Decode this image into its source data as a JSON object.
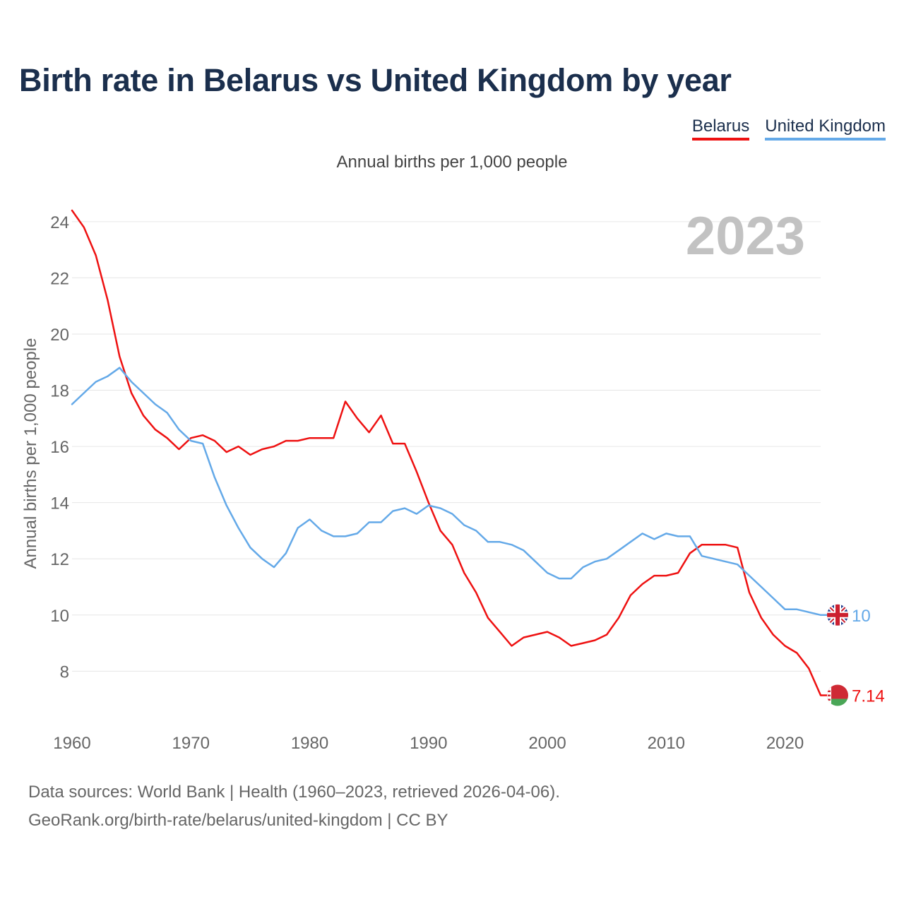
{
  "title": "Birth rate in Belarus vs United Kingdom by year",
  "subtitle": "Annual births per 1,000 people",
  "legend": [
    {
      "name": "Belarus",
      "color": "#ee1111"
    },
    {
      "name": "United Kingdom",
      "color": "#64a9e8"
    }
  ],
  "source": {
    "line1": "Data sources: World Bank | Health (1960–2023, retrieved 2026-04-06).",
    "line2": "GeoRank.org/birth-rate/belarus/united-kingdom | CC BY"
  },
  "chart_data": {
    "type": "line",
    "title": "Birth rate in Belarus vs United Kingdom by year",
    "subtitle": "Annual births per 1,000 people",
    "xlabel": "",
    "ylabel": "Annual births per 1,000 people",
    "watermark_year": "2023",
    "xlim": [
      1960,
      2023
    ],
    "ylim": [
      6.5,
      24.6
    ],
    "x_ticks": [
      1960,
      1970,
      1980,
      1990,
      2000,
      2010,
      2020
    ],
    "y_ticks": [
      8,
      10,
      12,
      14,
      16,
      18,
      20,
      22,
      24
    ],
    "grid": true,
    "legend_position": "top-right",
    "x": [
      1960,
      1961,
      1962,
      1963,
      1964,
      1965,
      1966,
      1967,
      1968,
      1969,
      1970,
      1971,
      1972,
      1973,
      1974,
      1975,
      1976,
      1977,
      1978,
      1979,
      1980,
      1981,
      1982,
      1983,
      1984,
      1985,
      1986,
      1987,
      1988,
      1989,
      1990,
      1991,
      1992,
      1993,
      1994,
      1995,
      1996,
      1997,
      1998,
      1999,
      2000,
      2001,
      2002,
      2003,
      2004,
      2005,
      2006,
      2007,
      2008,
      2009,
      2010,
      2011,
      2012,
      2013,
      2014,
      2015,
      2016,
      2017,
      2018,
      2019,
      2020,
      2021,
      2022,
      2023
    ],
    "series": [
      {
        "name": "Belarus",
        "color": "#ee1111",
        "end_label": "7.14",
        "values": [
          24.4,
          23.8,
          22.8,
          21.2,
          19.2,
          17.9,
          17.1,
          16.6,
          16.3,
          15.9,
          16.3,
          16.4,
          16.2,
          15.8,
          16.0,
          15.7,
          15.9,
          16.0,
          16.2,
          16.2,
          16.3,
          16.3,
          16.3,
          17.6,
          17.0,
          16.5,
          17.1,
          16.1,
          16.1,
          15.1,
          14.0,
          13.0,
          12.5,
          11.5,
          10.8,
          9.9,
          9.4,
          8.9,
          9.2,
          9.3,
          9.4,
          9.2,
          8.9,
          9.0,
          9.1,
          9.3,
          9.9,
          10.7,
          11.1,
          11.4,
          11.4,
          11.5,
          12.2,
          12.5,
          12.5,
          12.5,
          12.4,
          10.8,
          9.9,
          9.3,
          8.9,
          8.65,
          8.1,
          7.14
        ]
      },
      {
        "name": "United Kingdom",
        "color": "#64a9e8",
        "end_label": "10",
        "values": [
          17.5,
          17.9,
          18.3,
          18.5,
          18.8,
          18.3,
          17.9,
          17.5,
          17.2,
          16.6,
          16.2,
          16.1,
          14.9,
          13.9,
          13.1,
          12.4,
          12.0,
          11.7,
          12.2,
          13.1,
          13.4,
          13.0,
          12.8,
          12.8,
          12.9,
          13.3,
          13.3,
          13.7,
          13.8,
          13.6,
          13.9,
          13.8,
          13.6,
          13.2,
          13.0,
          12.6,
          12.6,
          12.5,
          12.3,
          11.9,
          11.5,
          11.3,
          11.3,
          11.7,
          11.9,
          12.0,
          12.3,
          12.6,
          12.9,
          12.7,
          12.9,
          12.8,
          12.8,
          12.1,
          12.0,
          11.9,
          11.8,
          11.4,
          11.0,
          10.6,
          10.2,
          10.2,
          10.1,
          10.0
        ]
      }
    ]
  }
}
